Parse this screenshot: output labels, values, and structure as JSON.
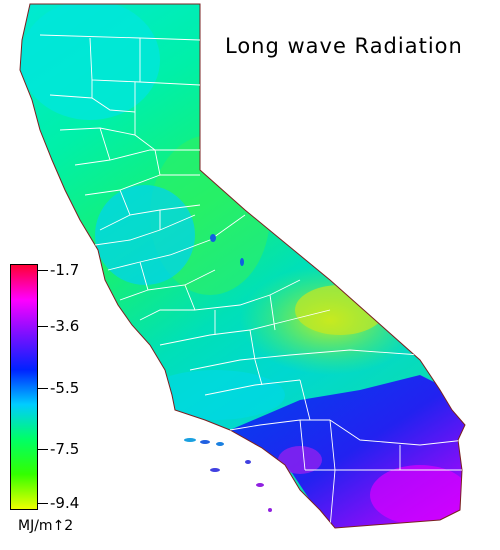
{
  "title": "Long wave Radiation",
  "legend": {
    "unit": "MJ/m↑2",
    "ticks": [
      "-1.7",
      "-3.6",
      "-5.5",
      "-7.5",
      "-9.4"
    ],
    "colors": [
      "#ff0033",
      "#ff00ff",
      "#7a10ff",
      "#0022ff",
      "#00ccff",
      "#00ff66",
      "#33ff00",
      "#eeff00"
    ]
  },
  "colors": {
    "north": "#00e8d8",
    "central_valley": "#22ee99",
    "bay_area": "#00d4f0",
    "coast_south": "#00e6b8",
    "desert_east": "#b6ee22",
    "southeast_desert": "#2233ee",
    "socal_coast": "#a010f0",
    "boundaries": "#ffffff"
  }
}
